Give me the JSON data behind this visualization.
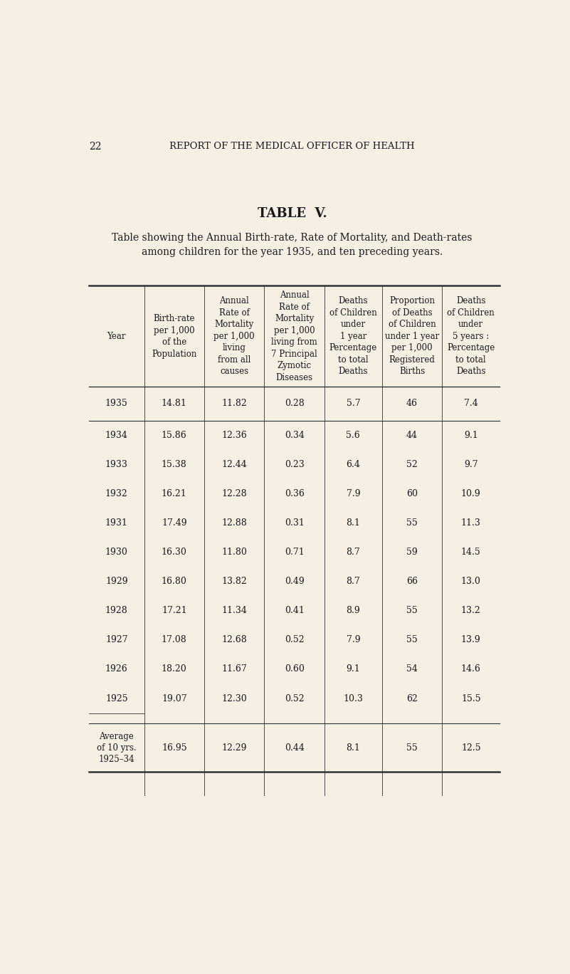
{
  "page_number": "22",
  "header": "REPORT OF THE MEDICAL OFFICER OF HEALTH",
  "table_title": "TABLE  V.",
  "table_subtitle": "Table showing the Annual Birth-rate, Rate of Mortality, and Death-rates\namong children for the year 1935, and ten preceding years.",
  "col_headers": [
    "Year",
    "Birth-rate\nper 1,000\nof the\nPopulation",
    "Annual\nRate of\nMortality\nper 1,000\nliving\nfrom all\ncauses",
    "Annual\nRate of\nMortality\nper 1,000\nliving from\n7 Principal\nZymotic\nDiseases",
    "Deaths\nof Children\nunder\n1 year\nPercentage\nto total\nDeaths",
    "Proportion\nof Deaths\nof Children\nunder 1 year\nper 1,000\nRegistered\nBirths",
    "Deaths\nof Children\nunder\n5 years :\nPercentage\nto total\nDeaths"
  ],
  "rows": [
    [
      "1935",
      "14.81",
      "11.82",
      "0.28",
      "5.7",
      "46",
      "7.4"
    ],
    [
      "1934",
      "15.86",
      "12.36",
      "0.34",
      "5.6",
      "44",
      "9.1"
    ],
    [
      "1933",
      "15.38",
      "12.44",
      "0.23",
      "6.4",
      "52",
      "9.7"
    ],
    [
      "1932",
      "16.21",
      "12.28",
      "0.36",
      "7.9",
      "60",
      "10.9"
    ],
    [
      "1931",
      "17.49",
      "12.88",
      "0.31",
      "8.1",
      "55",
      "11.3"
    ],
    [
      "1930",
      "16.30",
      "11.80",
      "0.71",
      "8.7",
      "59",
      "14.5"
    ],
    [
      "1929",
      "16.80",
      "13.82",
      "0.49",
      "8.7",
      "66",
      "13.0"
    ],
    [
      "1928",
      "17.21",
      "11.34",
      "0.41",
      "8.9",
      "55",
      "13.2"
    ],
    [
      "1927",
      "17.08",
      "12.68",
      "0.52",
      "7.9",
      "55",
      "13.9"
    ],
    [
      "1926",
      "18.20",
      "11.67",
      "0.60",
      "9.1",
      "54",
      "14.6"
    ],
    [
      "1925",
      "19.07",
      "12.30",
      "0.52",
      "10.3",
      "62",
      "15.5"
    ]
  ],
  "average_row_label": "Average\nof 10 yrs.\n1925–34",
  "average_row": [
    "16.95",
    "12.29",
    "0.44",
    "8.1",
    "55",
    "12.5"
  ],
  "bg_color": "#f5efe4",
  "text_color": "#1a1a1a",
  "line_color": "#333333"
}
